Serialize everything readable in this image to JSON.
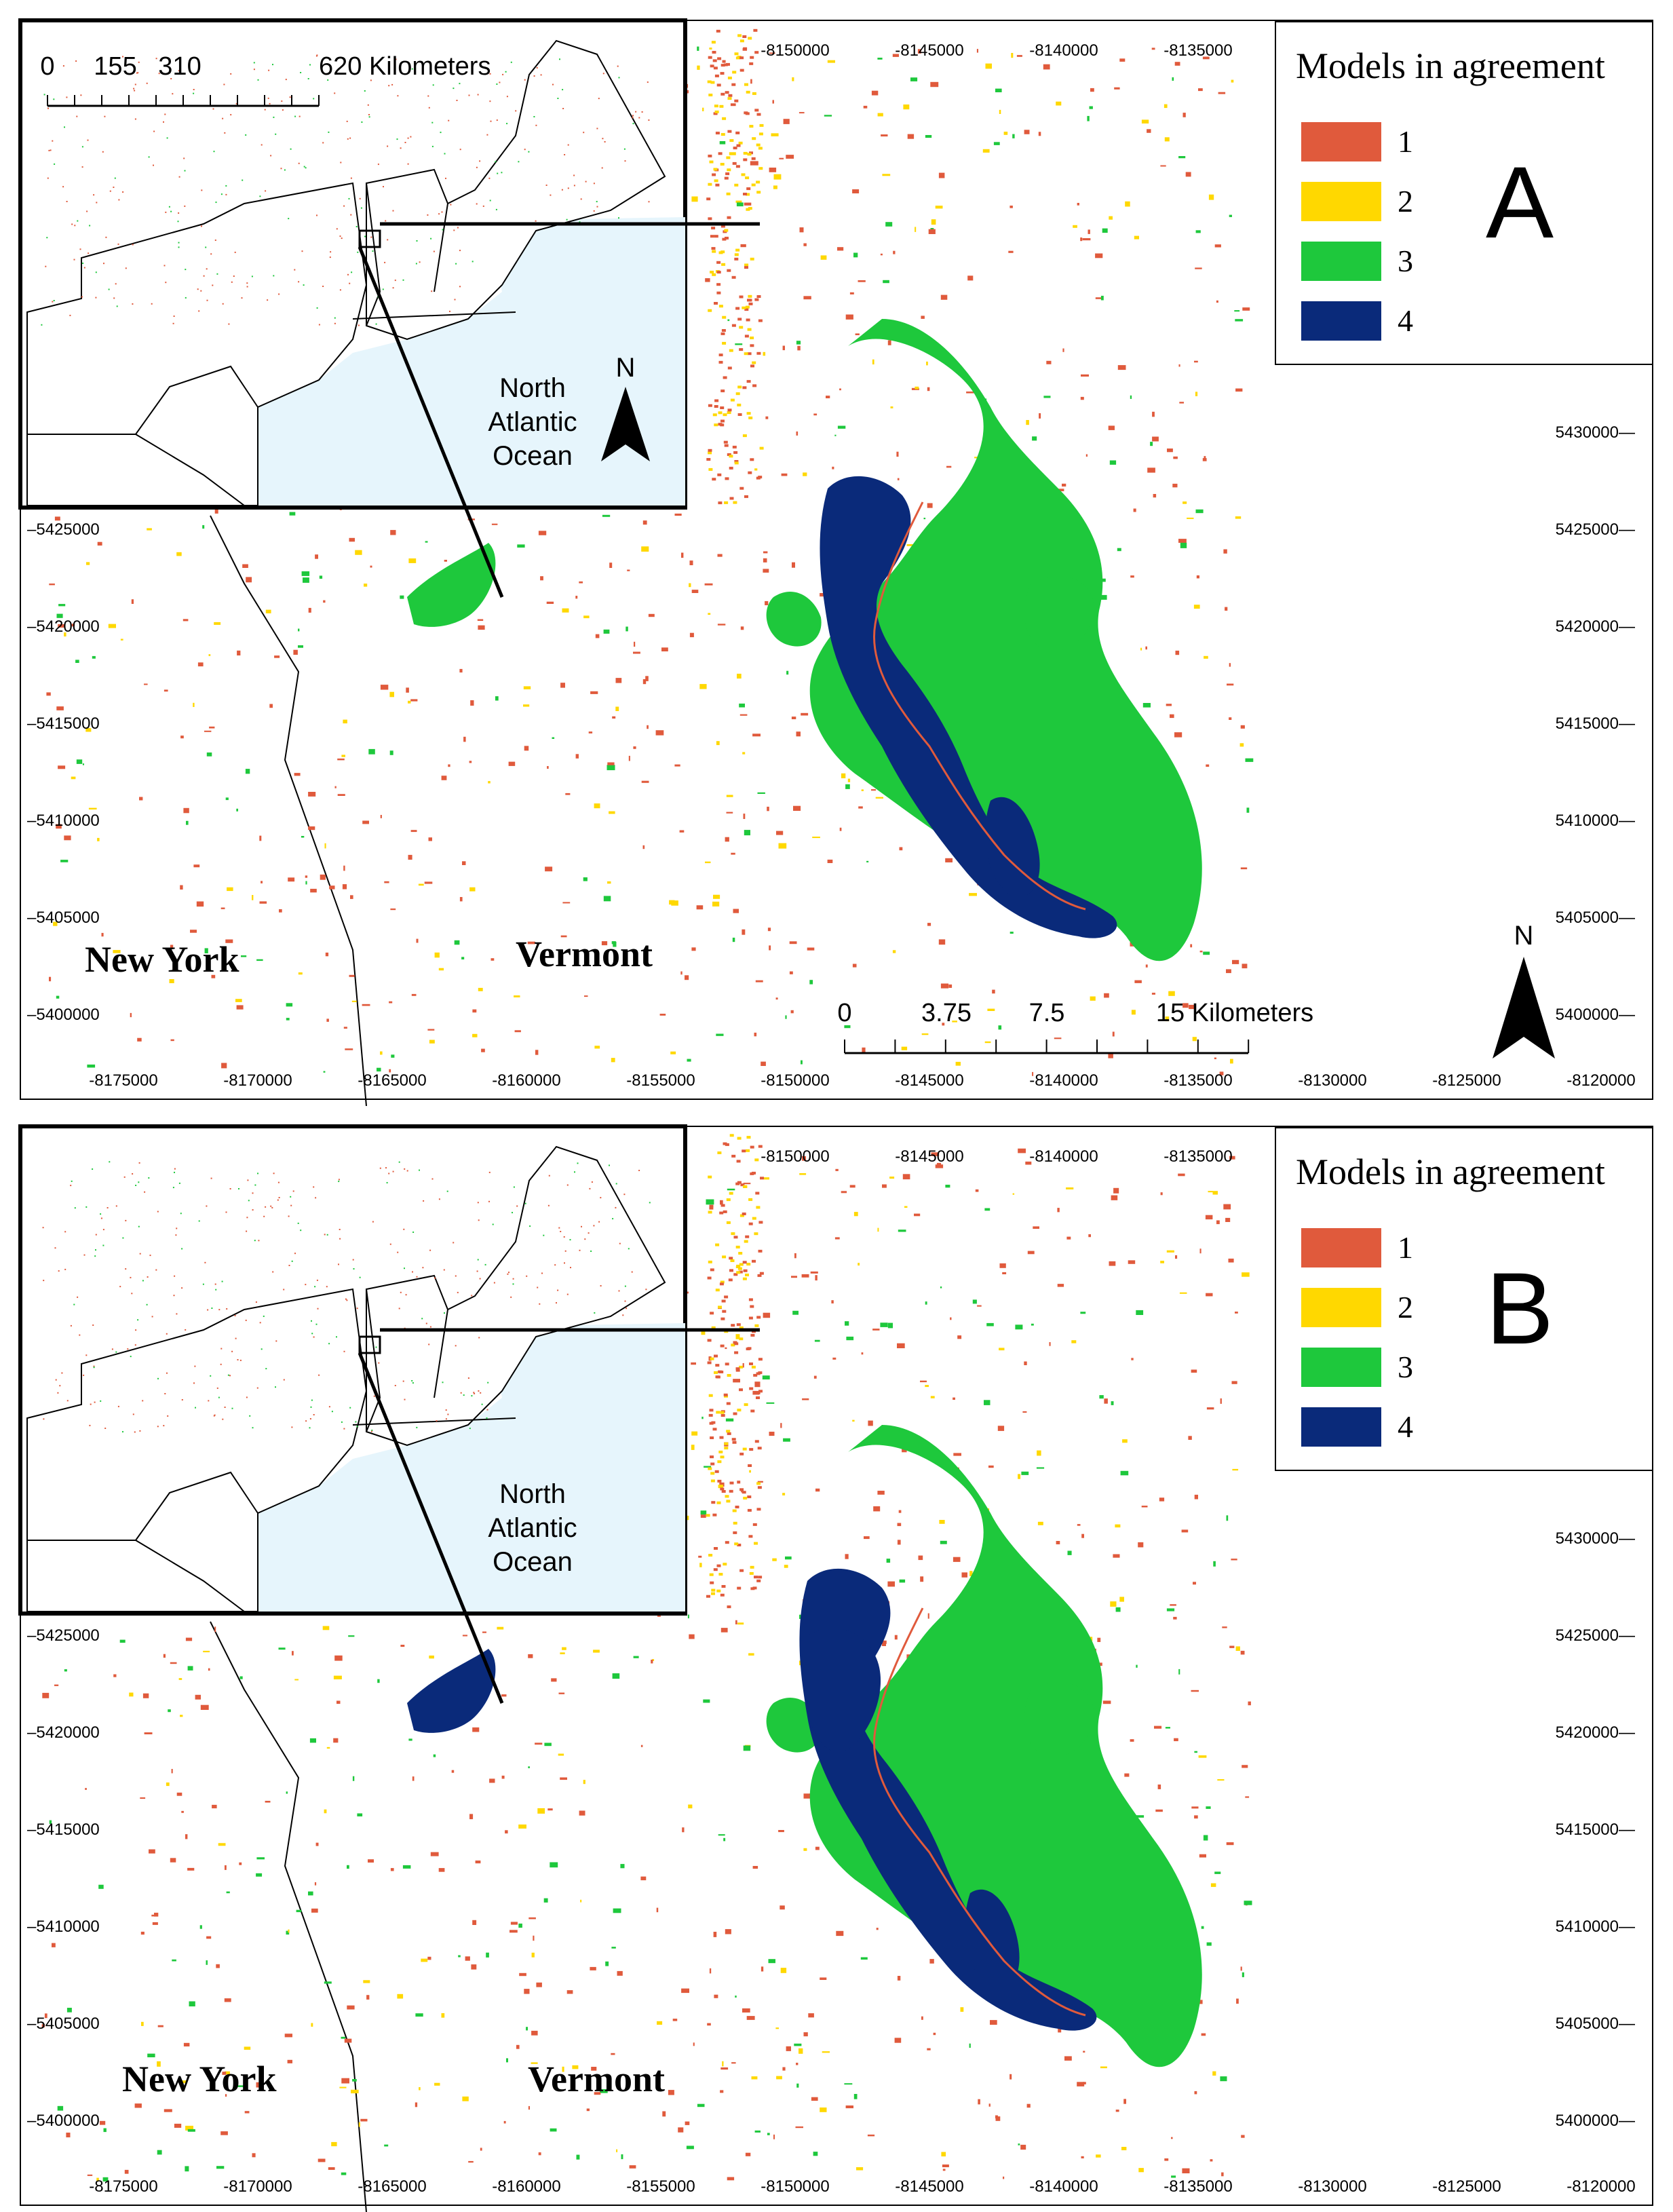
{
  "colors": {
    "agreement_1": "#e05a3c",
    "agreement_2": "#ffd800",
    "agreement_3": "#1ec83c",
    "agreement_4": "#0a2a7a",
    "ocean": "#e6f5fc",
    "frame": "#000000"
  },
  "panels": [
    {
      "letter": "A",
      "legend": {
        "title": "Models in agreement",
        "items": [
          {
            "label": "1",
            "color": "#e05a3c"
          },
          {
            "label": "2",
            "color": "#ffd800"
          },
          {
            "label": "3",
            "color": "#1ec83c"
          },
          {
            "label": "4",
            "color": "#0a2a7a"
          }
        ]
      },
      "main_scale": {
        "labels": [
          "0",
          "3.75",
          "7.5",
          "15 Kilometers"
        ]
      },
      "inset_scale": {
        "labels": [
          "0",
          "155",
          "310",
          "620 Kilometers"
        ]
      },
      "north_label": "N",
      "inset_north_label": "N",
      "ocean_label": [
        "North",
        "Atlantic",
        "Ocean"
      ],
      "states": [
        "New York",
        "Vermont"
      ]
    },
    {
      "letter": "B",
      "legend": {
        "title": "Models in agreement",
        "items": [
          {
            "label": "1",
            "color": "#e05a3c"
          },
          {
            "label": "2",
            "color": "#ffd800"
          },
          {
            "label": "3",
            "color": "#1ec83c"
          },
          {
            "label": "4",
            "color": "#0a2a7a"
          }
        ]
      },
      "ocean_label": [
        "North",
        "Atlantic",
        "Ocean"
      ],
      "states": [
        "New York",
        "Vermont"
      ]
    }
  ],
  "x_ticks_bottom": [
    "-8175000",
    "-8170000",
    "-8165000",
    "-8160000",
    "-8155000",
    "-8150000",
    "-8145000",
    "-8140000",
    "-8135000",
    "-8130000",
    "-8125000",
    "-8120000"
  ],
  "x_ticks_top": [
    "-8150000",
    "-8145000",
    "-8140000",
    "-8135000"
  ],
  "y_ticks_right": [
    "5430000",
    "5425000",
    "5420000",
    "5415000",
    "5410000",
    "5405000",
    "5400000"
  ],
  "y_ticks_left": [
    "5425000",
    "5420000",
    "5415000",
    "5410000",
    "5405000",
    "5400000"
  ]
}
